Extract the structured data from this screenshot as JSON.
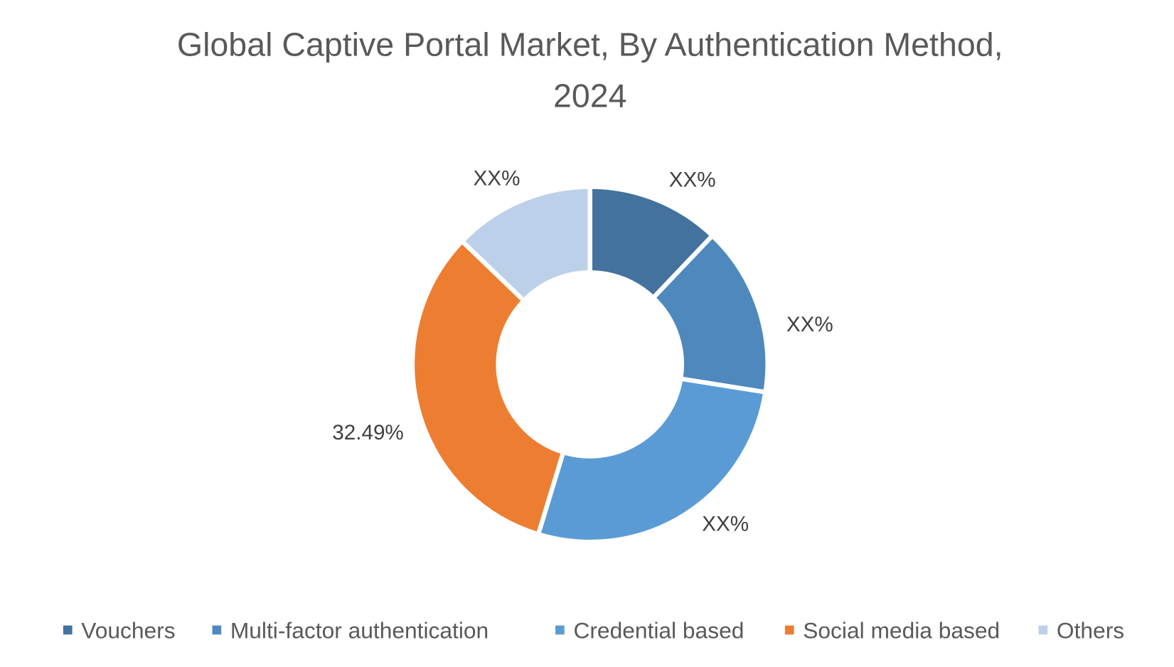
{
  "chart_data": {
    "type": "pie",
    "variant": "donut",
    "title": [
      "Global Captive Portal Market, By Authentication Method,",
      "2024"
    ],
    "categories": [
      "Vouchers",
      "Multi-factor authentication",
      "Credential based",
      "Social media based",
      "Others"
    ],
    "values": [
      12.1,
      15.4,
      27.2,
      32.49,
      12.8
    ],
    "data_labels": [
      "XX%",
      "XX%",
      "XX%",
      "32.49%",
      "XX%"
    ],
    "colors": [
      "#44729f",
      "#4e88bd",
      "#5b9bd5",
      "#ed7d31",
      "#bdd0e9"
    ],
    "legend_position": "bottom"
  }
}
